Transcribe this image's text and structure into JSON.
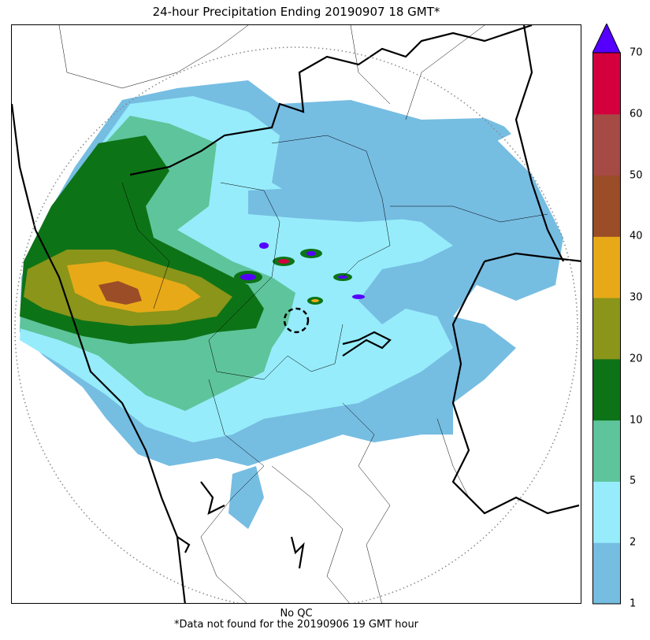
{
  "title": "24-hour Precipitation Ending 20190907 18 GMT*",
  "footer": {
    "qc_note": "No QC",
    "missing_note": "*Data not found for the 20190906 19 GMT hour"
  },
  "colorbar": {
    "extend": "max",
    "extend_color": "#5500ff",
    "levels": [
      1,
      2,
      5,
      10,
      20,
      30,
      40,
      50,
      60,
      70
    ],
    "colors": [
      "#76bde2",
      "#96ecfb",
      "#5ec49b",
      "#0d7317",
      "#8a9519",
      "#e8a918",
      "#9a4d26",
      "#a54a44",
      "#d4003e"
    ],
    "tick_labels": [
      "1",
      "2",
      "5",
      "10",
      "20",
      "30",
      "40",
      "50",
      "60",
      "70"
    ]
  },
  "map": {
    "range_ring": "dotted",
    "center_marker": "dashed-circle"
  }
}
